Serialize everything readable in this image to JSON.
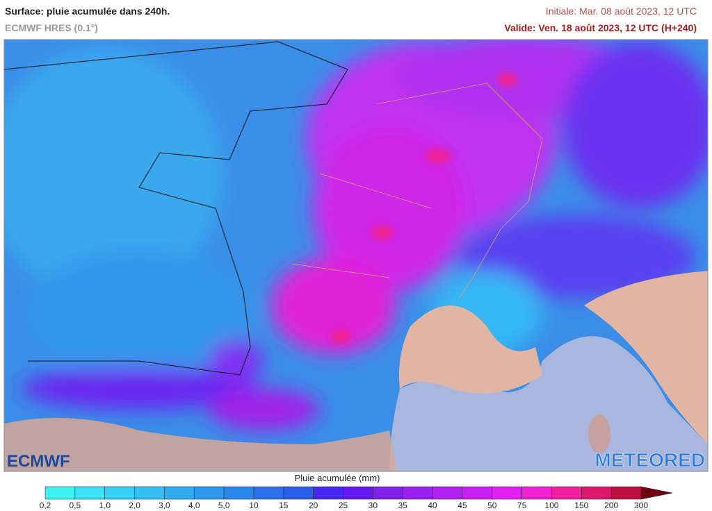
{
  "header": {
    "title": "Surface: pluie acumulée dans 240h.",
    "model": "ECMWF HRES (0.1°)",
    "initial": "Initiale: Mar. 08 août 2023, 12 UTC",
    "valid": "Valide: Ven. 18 août 2023, 12 UTC (H+240)"
  },
  "logos": {
    "left": "ECMWF",
    "right": "METEORED"
  },
  "legend": {
    "title": "Pluie acumulée (mm)",
    "labels": [
      "0,2",
      "0,5",
      "1,0",
      "2,0",
      "3,0",
      "4,0",
      "5,0",
      "10",
      "15",
      "20",
      "25",
      "30",
      "35",
      "40",
      "45",
      "50",
      "75",
      "100",
      "150",
      "200",
      "300"
    ],
    "colors": [
      "#3ff2f2",
      "#3ce2f6",
      "#38d0f6",
      "#34bef4",
      "#30aaf0",
      "#2c98ee",
      "#2a86ec",
      "#2a70e8",
      "#2a5ce8",
      "#4428f2",
      "#6618f0",
      "#8020ea",
      "#9a20f0",
      "#b020f0",
      "#c820f0",
      "#e020f0",
      "#f020d0",
      "#f0209e",
      "#dc186c",
      "#bc1040",
      "#9a0a26",
      "#700010"
    ]
  }
}
